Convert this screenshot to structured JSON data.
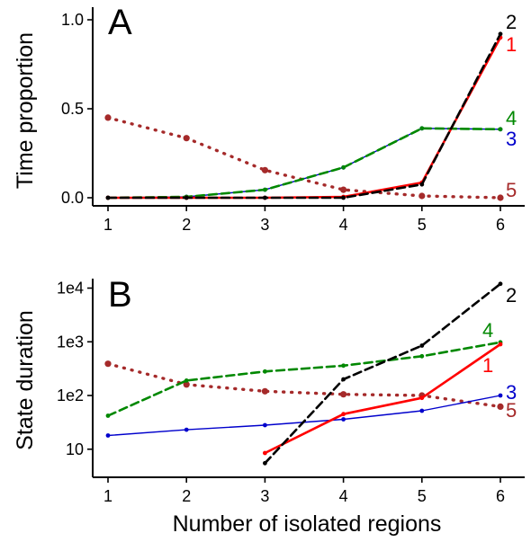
{
  "colors": {
    "s1": "#ff0000",
    "s2": "#000000",
    "s3": "#0000cc",
    "s4": "#008800",
    "s5": "#a52a2a"
  },
  "chart_data": [
    {
      "type": "line",
      "panel_label": "A",
      "title": "",
      "xlabel": "",
      "ylabel": "Time proportion",
      "xlim": [
        1,
        6
      ],
      "ylim": [
        0,
        1
      ],
      "x_scale": "linear",
      "y_scale": "linear",
      "x_ticks": [
        1,
        2,
        3,
        4,
        5,
        6
      ],
      "x_tick_labels": [
        "1",
        "2",
        "3",
        "4",
        "5",
        "6"
      ],
      "y_ticks": [
        0,
        0.5,
        1
      ],
      "y_tick_labels": [
        "0.0",
        "0.5",
        "1.0"
      ],
      "grid": false,
      "legend": "direct labels at right end of lines",
      "series": [
        {
          "name": "1",
          "color": "#ff0000",
          "style": "solid",
          "x": [
            1,
            2,
            3,
            4,
            5,
            6
          ],
          "values": [
            0.0,
            0.0,
            0.0,
            0.005,
            0.085,
            0.9
          ]
        },
        {
          "name": "2",
          "color": "#000000",
          "style": "dashed",
          "x": [
            1,
            2,
            3,
            4,
            5,
            6
          ],
          "values": [
            0.0,
            0.0,
            0.0,
            0.0,
            0.075,
            0.92
          ]
        },
        {
          "name": "3",
          "color": "#0000cc",
          "style": "solid-thin",
          "x": [
            1,
            2,
            3,
            4,
            5,
            6
          ],
          "values": [
            0.0,
            0.005,
            0.045,
            0.17,
            0.39,
            0.385
          ]
        },
        {
          "name": "4",
          "color": "#008800",
          "style": "dashed",
          "x": [
            1,
            2,
            3,
            4,
            5,
            6
          ],
          "values": [
            0.0,
            0.005,
            0.045,
            0.17,
            0.39,
            0.385
          ]
        },
        {
          "name": "5",
          "color": "#a52a2a",
          "style": "dotted",
          "x": [
            1,
            2,
            3,
            4,
            5,
            6
          ],
          "values": [
            0.45,
            0.335,
            0.155,
            0.045,
            0.01,
            0.0
          ]
        }
      ]
    },
    {
      "type": "line",
      "panel_label": "B",
      "title": "",
      "xlabel": "Number of isolated regions",
      "ylabel": "State duration",
      "xlim": [
        1,
        6
      ],
      "ylim": [
        3,
        15000
      ],
      "x_scale": "linear",
      "y_scale": "log",
      "x_ticks": [
        1,
        2,
        3,
        4,
        5,
        6
      ],
      "x_tick_labels": [
        "1",
        "2",
        "3",
        "4",
        "5",
        "6"
      ],
      "y_ticks": [
        10,
        100,
        1000,
        10000
      ],
      "y_tick_labels": [
        "10",
        "1e2",
        "1e3",
        "1e4"
      ],
      "grid": false,
      "legend": "direct labels at right end of lines",
      "series": [
        {
          "name": "1",
          "color": "#ff0000",
          "style": "solid",
          "x": [
            3,
            4,
            5,
            6
          ],
          "values": [
            8.5,
            45,
            90,
            900
          ]
        },
        {
          "name": "2",
          "color": "#000000",
          "style": "dashed",
          "x": [
            3,
            4,
            5,
            6
          ],
          "values": [
            5.5,
            200,
            850,
            12000
          ]
        },
        {
          "name": "3",
          "color": "#0000cc",
          "style": "solid-thin",
          "x": [
            1,
            2,
            3,
            4,
            5,
            6
          ],
          "values": [
            18,
            23,
            28,
            36,
            52,
            100
          ]
        },
        {
          "name": "4",
          "color": "#008800",
          "style": "dashed",
          "x": [
            1,
            2,
            3,
            4,
            5,
            6
          ],
          "values": [
            42,
            190,
            280,
            360,
            540,
            980
          ]
        },
        {
          "name": "5",
          "color": "#a52a2a",
          "style": "dotted",
          "x": [
            1,
            2,
            3,
            4,
            5,
            6
          ],
          "values": [
            390,
            160,
            120,
            105,
            100,
            62
          ]
        }
      ]
    }
  ],
  "end_labels": [
    [
      {
        "text": "2",
        "color": "#000000"
      },
      {
        "text": "1",
        "color": "#ff0000"
      },
      {
        "text": "4",
        "color": "#008800"
      },
      {
        "text": "3",
        "color": "#0000cc"
      },
      {
        "text": "5",
        "color": "#a52a2a"
      }
    ],
    [
      {
        "text": "2",
        "color": "#000000"
      },
      {
        "text": "4",
        "color": "#008800"
      },
      {
        "text": "1",
        "color": "#ff0000"
      },
      {
        "text": "3",
        "color": "#0000cc"
      },
      {
        "text": "5",
        "color": "#a52a2a"
      }
    ]
  ]
}
